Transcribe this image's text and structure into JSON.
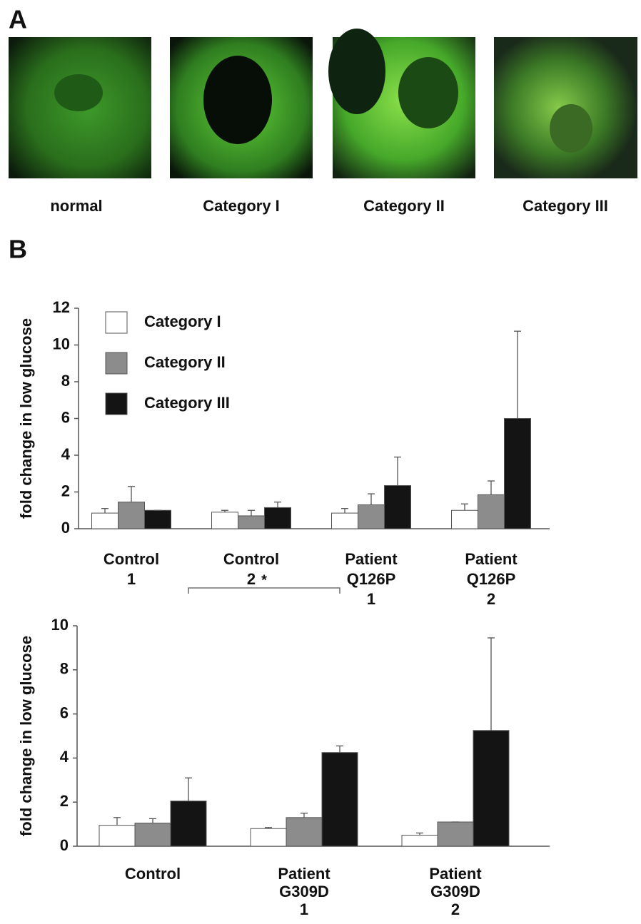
{
  "panel_a": {
    "label": "A",
    "captions": [
      "normal",
      "Category I",
      "Category II",
      "Category III"
    ]
  },
  "panel_b": {
    "label": "B"
  },
  "chart_data": [
    {
      "type": "bar",
      "ylabel": "fold change in low glucose",
      "categories": [
        [
          "Control",
          "1"
        ],
        [
          "Control",
          "2"
        ],
        [
          "Patient",
          "Q126P",
          "1"
        ],
        [
          "Patient",
          "Q126P",
          "2"
        ]
      ],
      "series": [
        {
          "name": "Category I",
          "color": "#ffffff",
          "values": [
            0.85,
            0.9,
            0.85,
            1.0
          ],
          "errors": [
            0.25,
            0.1,
            0.25,
            0.35
          ]
        },
        {
          "name": "Category II",
          "color": "#8c8c8c",
          "values": [
            1.45,
            0.7,
            1.3,
            1.85
          ],
          "errors": [
            0.85,
            0.3,
            0.6,
            0.75
          ]
        },
        {
          "name": "Category III",
          "color": "#141414",
          "values": [
            1.0,
            1.15,
            2.35,
            6.0
          ],
          "errors": [
            0,
            0.3,
            1.55,
            4.75
          ]
        }
      ],
      "ylim": [
        0,
        12
      ],
      "yticks": [
        0,
        2,
        4,
        6,
        8,
        10,
        12
      ],
      "legend": "upper left"
    },
    {
      "type": "bar",
      "ylabel": "fold change in low glucose",
      "categories": [
        [
          "Control"
        ],
        [
          "Patient",
          "G309D",
          "1"
        ],
        [
          "Patient",
          "G309D",
          "2"
        ]
      ],
      "series": [
        {
          "color": "#ffffff",
          "values": [
            0.95,
            0.8,
            0.5
          ],
          "errors": [
            0.35,
            0.05,
            0.1
          ]
        },
        {
          "color": "#8c8c8c",
          "values": [
            1.05,
            1.3,
            1.1
          ],
          "errors": [
            0.2,
            0.2,
            0
          ]
        },
        {
          "color": "#141414",
          "values": [
            2.05,
            4.25,
            5.25
          ],
          "errors": [
            1.05,
            0.3,
            4.2
          ]
        }
      ],
      "ylim": [
        0,
        10
      ],
      "yticks": [
        0,
        2,
        4,
        6,
        8,
        10
      ],
      "annotation": "*"
    }
  ]
}
